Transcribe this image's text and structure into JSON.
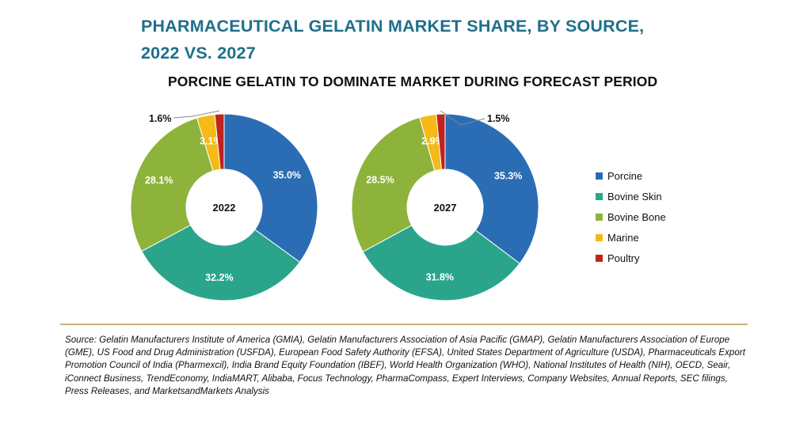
{
  "title_line1": "PHARMACEUTICAL GELATIN MARKET SHARE, BY SOURCE,",
  "title_line2": "2022 VS. 2027",
  "subtitle": "PORCINE GELATIN TO DOMINATE MARKET DURING FORECAST PERIOD",
  "chart_data": {
    "type": "pie",
    "style": "donut",
    "categories": [
      "Porcine",
      "Bovine Skin",
      "Bovine Bone",
      "Marine",
      "Poultry"
    ],
    "colors": [
      "#2a6db5",
      "#2aa58c",
      "#8db33a",
      "#f5b918",
      "#c0231d"
    ],
    "legend_position": "right",
    "series": [
      {
        "name": "2022",
        "labels": [
          "35.0%",
          "32.2%",
          "28.1%",
          "3.1%",
          "1.6%"
        ],
        "values": [
          35.0,
          32.2,
          28.1,
          3.1,
          1.6
        ]
      },
      {
        "name": "2027",
        "labels": [
          "35.3%",
          "31.8%",
          "28.5%",
          "2.9%",
          "1.5%"
        ],
        "values": [
          35.3,
          31.8,
          28.5,
          2.9,
          1.5
        ]
      }
    ]
  },
  "source_text": "Source: Gelatin Manufacturers Institute of America (GMIA), Gelatin Manufacturers Association of Asia Pacific (GMAP), Gelatin Manufacturers Association of Europe (GME), US Food and Drug Administration (USFDA), European Food Safety Authority (EFSA), United States Department of Agriculture (USDA), Pharmaceuticals Export Promotion Council of India (Pharmexcil), India Brand Equity Foundation (IBEF), World Health Organization (WHO), National Institutes of Health (NIH), OECD, Seair, iConnect Business, TrendEconomy, IndiaMART, Alibaba, Focus Technology, PharmaCompass, Expert Interviews, Company Websites, Annual Reports, SEC filings, Press Releases, and MarketsandMarkets Analysis"
}
